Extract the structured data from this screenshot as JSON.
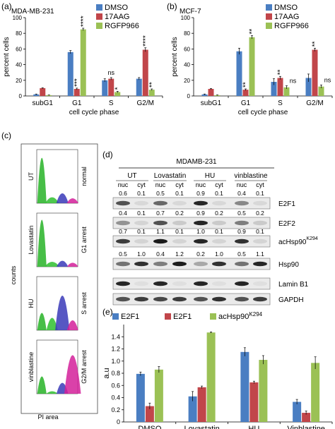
{
  "colors": {
    "blue": "#4a7ec2",
    "red": "#c1464a",
    "green": "#9bc155"
  },
  "panels": {
    "a": "(a)",
    "b": "(b)",
    "c": "(c)",
    "d": "(d)",
    "e": "(e)"
  },
  "chart_data": [
    {
      "id": "a",
      "type": "bar",
      "title": "MDA-MB-231",
      "xlabel": "cell cycle phase",
      "ylabel": "percent cells",
      "ylim": [
        0,
        100
      ],
      "yticks": [
        0,
        20,
        40,
        60,
        80,
        100
      ],
      "categories": [
        "subG1",
        "G1",
        "S",
        "G2/M"
      ],
      "series": [
        {
          "name": "DMSO",
          "values": [
            2,
            56,
            20,
            22
          ],
          "errors": [
            0.5,
            2,
            2,
            1.5
          ],
          "color": "#4a7ec2"
        },
        {
          "name": "17AAG",
          "values": [
            10,
            9,
            22,
            59
          ],
          "errors": [
            0.5,
            1,
            1.5,
            2.5
          ],
          "color": "#c1464a"
        },
        {
          "name": "RGFP966",
          "values": [
            1,
            85,
            5,
            8
          ],
          "errors": [
            0.3,
            1.5,
            1,
            1
          ],
          "color": "#9bc155"
        }
      ],
      "annotations": [
        {
          "cat": 1,
          "series": 1,
          "text": "***"
        },
        {
          "cat": 1,
          "series": 2,
          "text": "****"
        },
        {
          "cat": 2,
          "series": 1,
          "text": "ns"
        },
        {
          "cat": 2,
          "series": 2,
          "text": "*"
        },
        {
          "cat": 3,
          "series": 1,
          "text": "****"
        },
        {
          "cat": 3,
          "series": 2,
          "text": "**"
        }
      ],
      "legend": "top-right"
    },
    {
      "id": "b",
      "type": "bar",
      "title": "MCF-7",
      "xlabel": "cell cycle phase",
      "ylabel": "percent cells",
      "ylim": [
        0,
        100
      ],
      "yticks": [
        0,
        20,
        40,
        60,
        80,
        100
      ],
      "categories": [
        "subG1",
        "G1",
        "S",
        "G2/M"
      ],
      "series": [
        {
          "name": "DMSO",
          "values": [
            2,
            57,
            18,
            23
          ],
          "errors": [
            0.5,
            4,
            4,
            5
          ],
          "color": "#4a7ec2"
        },
        {
          "name": "17AAG",
          "values": [
            9,
            8,
            23,
            59
          ],
          "errors": [
            0.5,
            1,
            2,
            2
          ],
          "color": "#c1464a"
        },
        {
          "name": "RGFP966",
          "values": [
            1,
            75,
            11,
            12
          ],
          "errors": [
            0.3,
            2,
            2,
            2
          ],
          "color": "#9bc155"
        }
      ],
      "annotations": [
        {
          "cat": 1,
          "series": 1,
          "text": "**"
        },
        {
          "cat": 1,
          "series": 2,
          "text": "**"
        },
        {
          "cat": 2,
          "series": 1,
          "text": "**"
        },
        {
          "cat": 2,
          "series": 2,
          "text": "ns"
        },
        {
          "cat": 3,
          "series": 1,
          "text": "**"
        },
        {
          "cat": 3,
          "series": 2,
          "text": "ns"
        }
      ],
      "legend": "top-right"
    },
    {
      "id": "e",
      "type": "bar",
      "xlabel": "",
      "ylabel": "a.u",
      "ylim": [
        0,
        1.6
      ],
      "yticks": [
        "0",
        "0.2",
        "0.4",
        "0.6",
        "0.8",
        "1.0",
        "1.2",
        "1.4"
      ],
      "categories": [
        "DMSO",
        "Lovastatin",
        "HU",
        "Vinblastine"
      ],
      "series": [
        {
          "name": "E2F1",
          "values": [
            0.79,
            0.42,
            1.15,
            0.33
          ],
          "errors": [
            0.03,
            0.08,
            0.07,
            0.04
          ],
          "color": "#4a7ec2"
        },
        {
          "name": "E2F1",
          "values": [
            0.26,
            0.57,
            0.65,
            0.15
          ],
          "errors": [
            0.05,
            0.02,
            0.02,
            0.03
          ],
          "color": "#c1464a"
        },
        {
          "name": "acHsp90",
          "name_sup": "K294",
          "values": [
            0.86,
            1.47,
            1.02,
            0.97
          ],
          "errors": [
            0.05,
            0.01,
            0.07,
            0.1
          ],
          "color": "#9bc155"
        }
      ],
      "legend": "top"
    }
  ],
  "flow": {
    "xlabel": "PI area",
    "ylabel": "counts",
    "rows": [
      {
        "treatment": "UT",
        "state": "normal"
      },
      {
        "treatment": "Lovastatin",
        "state": "G1 arrest"
      },
      {
        "treatment": "HU",
        "state": "S arrest"
      },
      {
        "treatment": "vinblastine",
        "state": "G2/M arrest"
      }
    ]
  },
  "blot": {
    "title": "MDAMB-231",
    "groups": [
      "UT",
      "Lovastatin",
      "HU",
      "vinblastine"
    ],
    "fractions": [
      "nuc",
      "cyt",
      "nuc",
      "cyt",
      "nuc",
      "cyt",
      "nuc",
      "cyt"
    ],
    "bands": [
      {
        "label": "E2F1",
        "values": [
          "0.6",
          "0.1",
          "0.5",
          "0.1",
          "0.9",
          "0.1",
          "0.4",
          "0.1"
        ]
      },
      {
        "label": "E2F2",
        "values": [
          "0.4",
          "0.1",
          "0.7",
          "0.2",
          "0.9",
          "0.2",
          "0.5",
          "0.2"
        ]
      },
      {
        "label": "acHsp90",
        "label_sup": "K294",
        "values": [
          "0.7",
          "0.1",
          "1.1",
          "0.1",
          "1.0",
          "0.1",
          "0.9",
          "0.1"
        ]
      },
      {
        "label": "Hsp90",
        "values": [
          "0.5",
          "1.0",
          "0.4",
          "1.2",
          "0.2",
          "1.0",
          "0.5",
          "1.1"
        ]
      },
      {
        "label": "Lamin B1",
        "values": []
      },
      {
        "label": "GAPDH",
        "values": []
      }
    ]
  }
}
